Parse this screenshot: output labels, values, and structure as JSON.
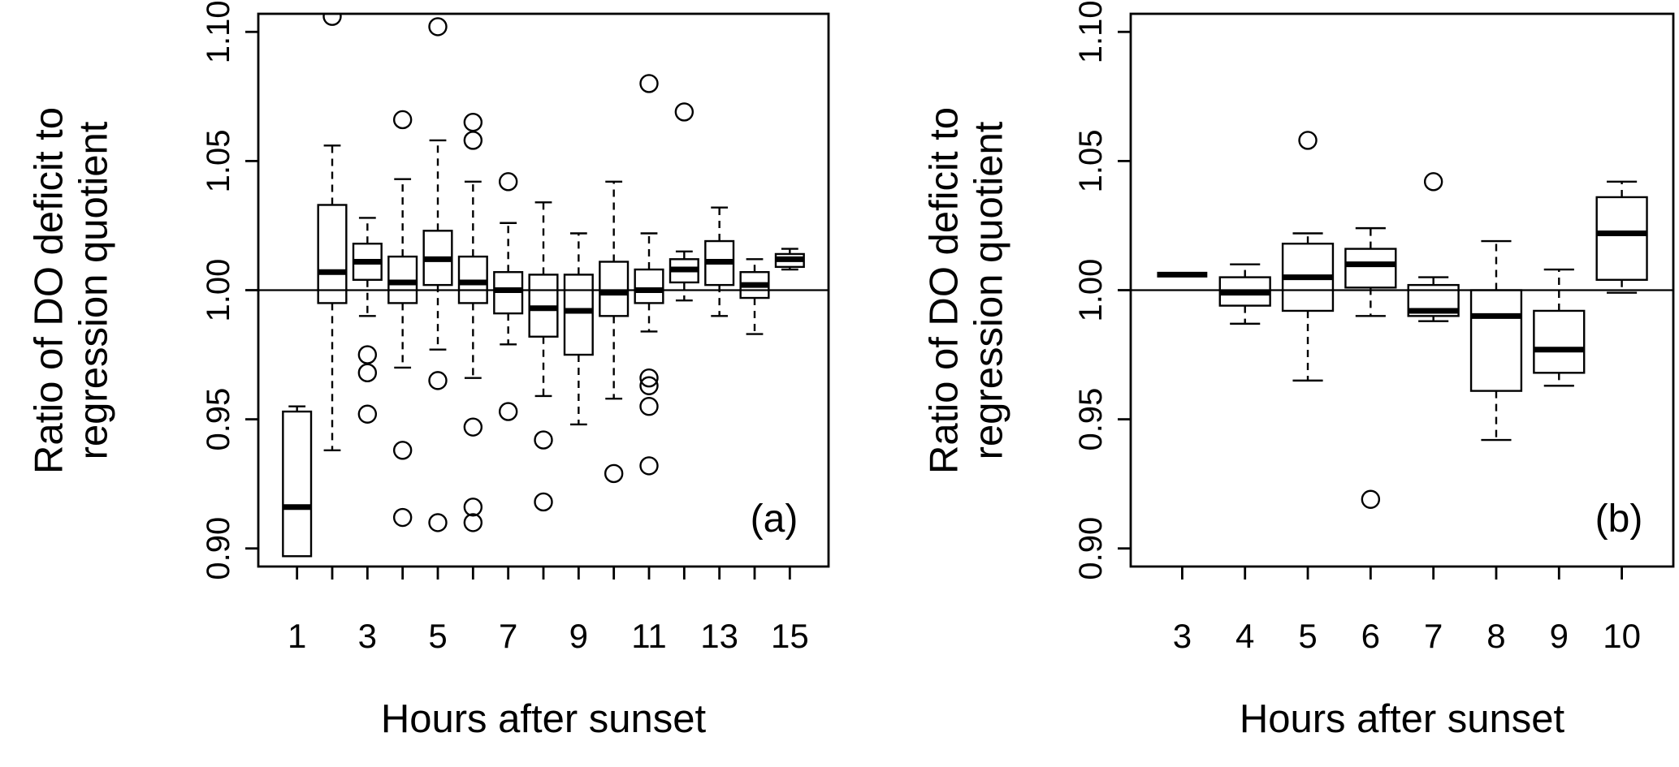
{
  "figure": {
    "background": "#ffffff",
    "ink_color": "#000000"
  },
  "chart_data": [
    {
      "type": "boxplot",
      "panel_label": "(a)",
      "xlabel": "Hours after sunset",
      "ylabel": "Ratio of DO deficit to\nregression quotient",
      "ylim": [
        0.893,
        1.107
      ],
      "ytick_values": [
        0.9,
        0.95,
        1.0,
        1.05,
        1.1
      ],
      "ytick_labels": [
        "0.90",
        "0.95",
        "1.00",
        "1.05",
        "1.10"
      ],
      "reference_line_y": 1.0,
      "categories": [
        "1",
        "2",
        "3",
        "4",
        "5",
        "6",
        "7",
        "8",
        "9",
        "10",
        "11",
        "12",
        "13",
        "14",
        "15"
      ],
      "labeled_categories": [
        "1",
        "3",
        "5",
        "7",
        "9",
        "11",
        "13",
        "15"
      ],
      "boxes": [
        {
          "hour": "1",
          "low": 0.897,
          "q1": 0.897,
          "median": 0.916,
          "q3": 0.953,
          "high": 0.955,
          "outliers": []
        },
        {
          "hour": "2",
          "low": 0.938,
          "q1": 0.995,
          "median": 1.007,
          "q3": 1.033,
          "high": 1.056,
          "outliers": [
            1.106
          ]
        },
        {
          "hour": "3",
          "low": 0.99,
          "q1": 1.004,
          "median": 1.011,
          "q3": 1.018,
          "high": 1.028,
          "outliers": [
            0.975,
            0.968,
            0.952
          ]
        },
        {
          "hour": "4",
          "low": 0.97,
          "q1": 0.995,
          "median": 1.003,
          "q3": 1.013,
          "high": 1.043,
          "outliers": [
            1.066,
            0.938,
            0.912
          ]
        },
        {
          "hour": "5",
          "low": 0.977,
          "q1": 1.002,
          "median": 1.012,
          "q3": 1.023,
          "high": 1.058,
          "outliers": [
            1.102,
            0.965,
            0.91
          ]
        },
        {
          "hour": "6",
          "low": 0.966,
          "q1": 0.995,
          "median": 1.003,
          "q3": 1.013,
          "high": 1.042,
          "outliers": [
            1.065,
            1.058,
            0.947,
            0.916,
            0.91
          ]
        },
        {
          "hour": "7",
          "low": 0.979,
          "q1": 0.991,
          "median": 1.0,
          "q3": 1.007,
          "high": 1.026,
          "outliers": [
            1.042,
            0.953
          ]
        },
        {
          "hour": "8",
          "low": 0.959,
          "q1": 0.982,
          "median": 0.993,
          "q3": 1.006,
          "high": 1.034,
          "outliers": [
            0.942,
            0.918
          ]
        },
        {
          "hour": "9",
          "low": 0.948,
          "q1": 0.975,
          "median": 0.992,
          "q3": 1.006,
          "high": 1.022,
          "outliers": []
        },
        {
          "hour": "10",
          "low": 0.958,
          "q1": 0.99,
          "median": 0.999,
          "q3": 1.011,
          "high": 1.042,
          "outliers": [
            0.929
          ]
        },
        {
          "hour": "11",
          "low": 0.984,
          "q1": 0.995,
          "median": 1.0,
          "q3": 1.008,
          "high": 1.022,
          "outliers": [
            1.08,
            0.966,
            0.963,
            0.955,
            0.932
          ]
        },
        {
          "hour": "12",
          "low": 0.996,
          "q1": 1.003,
          "median": 1.008,
          "q3": 1.012,
          "high": 1.015,
          "outliers": [
            1.069
          ]
        },
        {
          "hour": "13",
          "low": 0.99,
          "q1": 1.002,
          "median": 1.011,
          "q3": 1.019,
          "high": 1.032,
          "outliers": []
        },
        {
          "hour": "14",
          "low": 0.983,
          "q1": 0.997,
          "median": 1.002,
          "q3": 1.007,
          "high": 1.012,
          "outliers": []
        },
        {
          "hour": "15",
          "low": 1.008,
          "q1": 1.009,
          "median": 1.012,
          "q3": 1.014,
          "high": 1.016,
          "outliers": []
        }
      ]
    },
    {
      "type": "boxplot",
      "panel_label": "(b)",
      "xlabel": "Hours after sunset",
      "ylabel": "Ratio of DO deficit to\nregression quotient",
      "ylim": [
        0.893,
        1.107
      ],
      "ytick_values": [
        0.9,
        0.95,
        1.0,
        1.05,
        1.1
      ],
      "ytick_labels": [
        "0.90",
        "0.95",
        "1.00",
        "1.05",
        "1.10"
      ],
      "reference_line_y": 1.0,
      "categories": [
        "3",
        "4",
        "5",
        "6",
        "7",
        "8",
        "9",
        "10"
      ],
      "labeled_categories": [
        "3",
        "4",
        "5",
        "6",
        "7",
        "8",
        "9",
        "10"
      ],
      "boxes": [
        {
          "hour": "3",
          "low": 1.006,
          "q1": 1.006,
          "median": 1.006,
          "q3": 1.006,
          "high": 1.006,
          "outliers": []
        },
        {
          "hour": "4",
          "low": 0.987,
          "q1": 0.994,
          "median": 0.999,
          "q3": 1.005,
          "high": 1.01,
          "outliers": []
        },
        {
          "hour": "5",
          "low": 0.965,
          "q1": 0.992,
          "median": 1.005,
          "q3": 1.018,
          "high": 1.022,
          "outliers": [
            1.058
          ]
        },
        {
          "hour": "6",
          "low": 0.99,
          "q1": 1.001,
          "median": 1.01,
          "q3": 1.016,
          "high": 1.024,
          "outliers": [
            0.919
          ]
        },
        {
          "hour": "7",
          "low": 0.988,
          "q1": 0.99,
          "median": 0.992,
          "q3": 1.002,
          "high": 1.005,
          "outliers": [
            1.042
          ]
        },
        {
          "hour": "8",
          "low": 0.942,
          "q1": 0.961,
          "median": 0.99,
          "q3": 1.0,
          "high": 1.019,
          "outliers": []
        },
        {
          "hour": "9",
          "low": 0.963,
          "q1": 0.968,
          "median": 0.977,
          "q3": 0.992,
          "high": 1.008,
          "outliers": []
        },
        {
          "hour": "10",
          "low": 0.999,
          "q1": 1.004,
          "median": 1.022,
          "q3": 1.036,
          "high": 1.042,
          "outliers": []
        }
      ]
    }
  ]
}
